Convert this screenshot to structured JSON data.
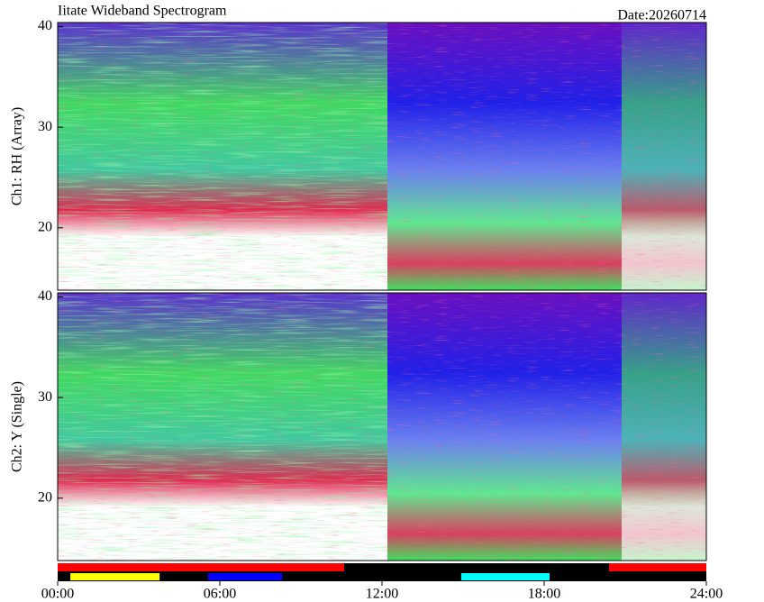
{
  "chart_data": {
    "type": "spectrogram",
    "title": "Iitate Wideband Spectrogram",
    "date": "Date:20260714",
    "xlim": [
      0,
      24
    ],
    "xticks": [
      {
        "value": 0,
        "label": "00:00"
      },
      {
        "value": 6,
        "label": "06:00"
      },
      {
        "value": 12,
        "label": "12:00"
      },
      {
        "value": 18,
        "label": "18:00"
      },
      {
        "value": 24,
        "label": "24:00"
      }
    ],
    "panels": [
      {
        "ylabel": "Ch1: RH (Array)",
        "ylim": [
          13.8,
          40.4
        ],
        "yticks": [
          20,
          30,
          40
        ]
      },
      {
        "ylabel": "Ch2: Y (Single)",
        "ylim": [
          13.8,
          40.4
        ],
        "yticks": [
          20,
          30,
          40
        ]
      }
    ],
    "status_bars": [
      {
        "segments": [
          {
            "start": 0,
            "end": 10.6,
            "color": "#ff0000"
          },
          {
            "start": 20.4,
            "end": 24,
            "color": "#ff0000"
          }
        ]
      },
      {
        "segments": [
          {
            "start": 0.47,
            "end": 3.77,
            "color": "#ffff00"
          },
          {
            "start": 5.57,
            "end": 8.3,
            "color": "#0000ff"
          },
          {
            "start": 14.93,
            "end": 18.2,
            "color": "#00ffff"
          }
        ]
      }
    ]
  }
}
